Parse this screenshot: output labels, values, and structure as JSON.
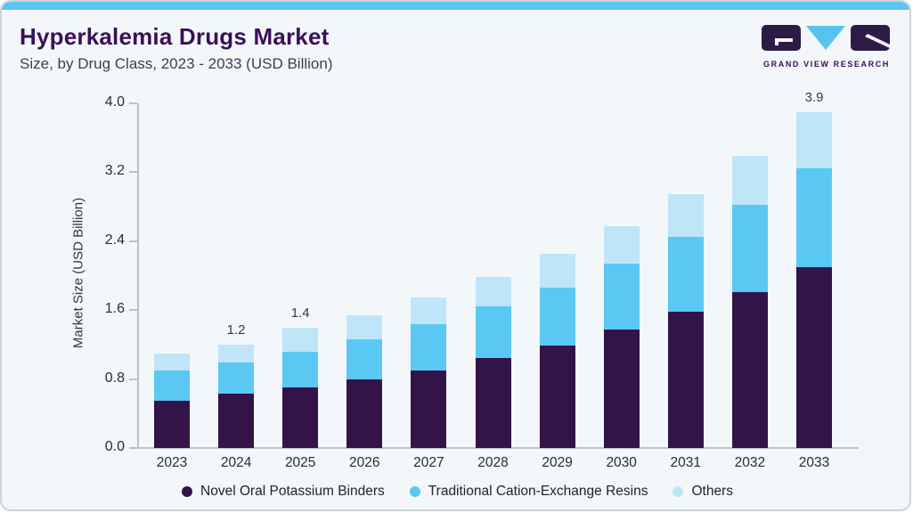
{
  "header": {
    "title": "Hyperkalemia Drugs Market",
    "subtitle": "Size, by Drug Class, 2023 - 2033 (USD Billion)"
  },
  "logo": {
    "name": "Grand View Research logo",
    "text": "GRAND VIEW RESEARCH",
    "dark_color": "#2e1a47",
    "blue_color": "#55c3ee"
  },
  "colors": {
    "accent_strip": "#5bc6f1",
    "title_purple": "#3a1057",
    "card_background": "#f3f7fa",
    "axis_gray": "#bac3ca"
  },
  "chart_data": {
    "type": "bar",
    "stacked": true,
    "title": "Hyperkalemia Drugs Market",
    "subtitle": "Size, by Drug Class, 2023 - 2033 (USD Billion)",
    "ylabel": "Market Size (USD Billion)",
    "xlabel": "",
    "ylim": [
      0.0,
      4.0
    ],
    "yticks": [
      0.0,
      0.8,
      1.6,
      2.4,
      3.2,
      4.0
    ],
    "grid": false,
    "legend_position": "bottom",
    "categories": [
      "2023",
      "2024",
      "2025",
      "2026",
      "2027",
      "2028",
      "2029",
      "2030",
      "2031",
      "2032",
      "2033"
    ],
    "series": [
      {
        "name": "Novel Oral Potassium Binders",
        "color": "#331449",
        "values": [
          0.55,
          0.63,
          0.7,
          0.8,
          0.9,
          1.04,
          1.19,
          1.37,
          1.58,
          1.81,
          2.1
        ]
      },
      {
        "name": "Traditional Cation-Exchange Resins",
        "color": "#5bc8f4",
        "values": [
          0.35,
          0.36,
          0.42,
          0.46,
          0.54,
          0.6,
          0.67,
          0.77,
          0.87,
          1.01,
          1.15
        ]
      },
      {
        "name": "Others",
        "color": "#bfe5f8",
        "values": [
          0.2,
          0.21,
          0.28,
          0.28,
          0.31,
          0.34,
          0.39,
          0.43,
          0.5,
          0.57,
          0.65
        ]
      }
    ],
    "totals": [
      1.1,
      1.2,
      1.4,
      1.54,
      1.75,
      1.98,
      2.25,
      2.57,
      2.95,
      3.39,
      3.9
    ],
    "bar_labels": [
      "",
      "1.2",
      "1.4",
      "",
      "",
      "",
      "",
      "",
      "",
      "",
      "3.9"
    ]
  }
}
